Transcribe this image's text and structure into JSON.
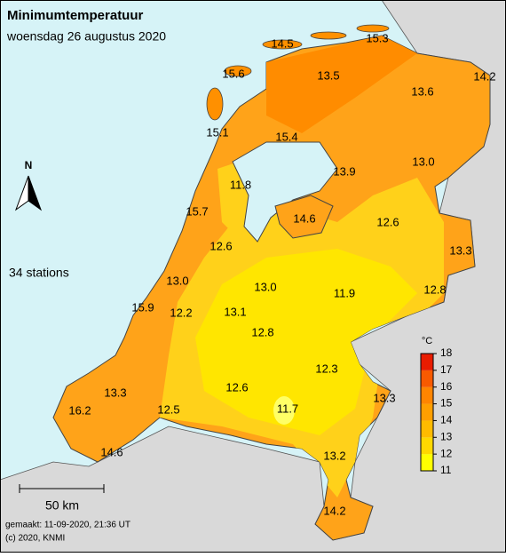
{
  "title": "Minimumtemperatuur",
  "subtitle": "woensdag 26 augustus 2020",
  "stations_label": "34 stations",
  "north": "N",
  "scale_bar": "50 km",
  "footer": [
    "gemaakt: 11-09-2020, 21:36 UT",
    "(c) 2020, KNMI"
  ],
  "legend": {
    "unit": "°C",
    "ticks": [
      11,
      12,
      13,
      14,
      15,
      16,
      17,
      18
    ],
    "colors": [
      "#ffff00",
      "#ffd800",
      "#ffbb00",
      "#ff9f00",
      "#ff8500",
      "#f85a00",
      "#e81c00"
    ]
  },
  "stations": [
    {
      "value": "14.5"
    },
    {
      "value": "15.3"
    },
    {
      "value": "15.6"
    },
    {
      "value": "13.5"
    },
    {
      "value": "13.6"
    },
    {
      "value": "14.2"
    },
    {
      "value": "15.1"
    },
    {
      "value": "15.4"
    },
    {
      "value": "13.9"
    },
    {
      "value": "13.0"
    },
    {
      "value": "11.8"
    },
    {
      "value": "15.7"
    },
    {
      "value": "14.6"
    },
    {
      "value": "12.6"
    },
    {
      "value": "12.6"
    },
    {
      "value": "13.3"
    },
    {
      "value": "13.0"
    },
    {
      "value": "13.0"
    },
    {
      "value": "11.9"
    },
    {
      "value": "12.8"
    },
    {
      "value": "15.9"
    },
    {
      "value": "12.2"
    },
    {
      "value": "13.1"
    },
    {
      "value": "12.8"
    },
    {
      "value": "12.3"
    },
    {
      "value": "13.3"
    },
    {
      "value": "12.6"
    },
    {
      "value": "13.3"
    },
    {
      "value": "16.2"
    },
    {
      "value": "12.5"
    },
    {
      "value": "11.7"
    },
    {
      "value": "14.6"
    },
    {
      "value": "13.2"
    },
    {
      "value": "14.2"
    }
  ]
}
